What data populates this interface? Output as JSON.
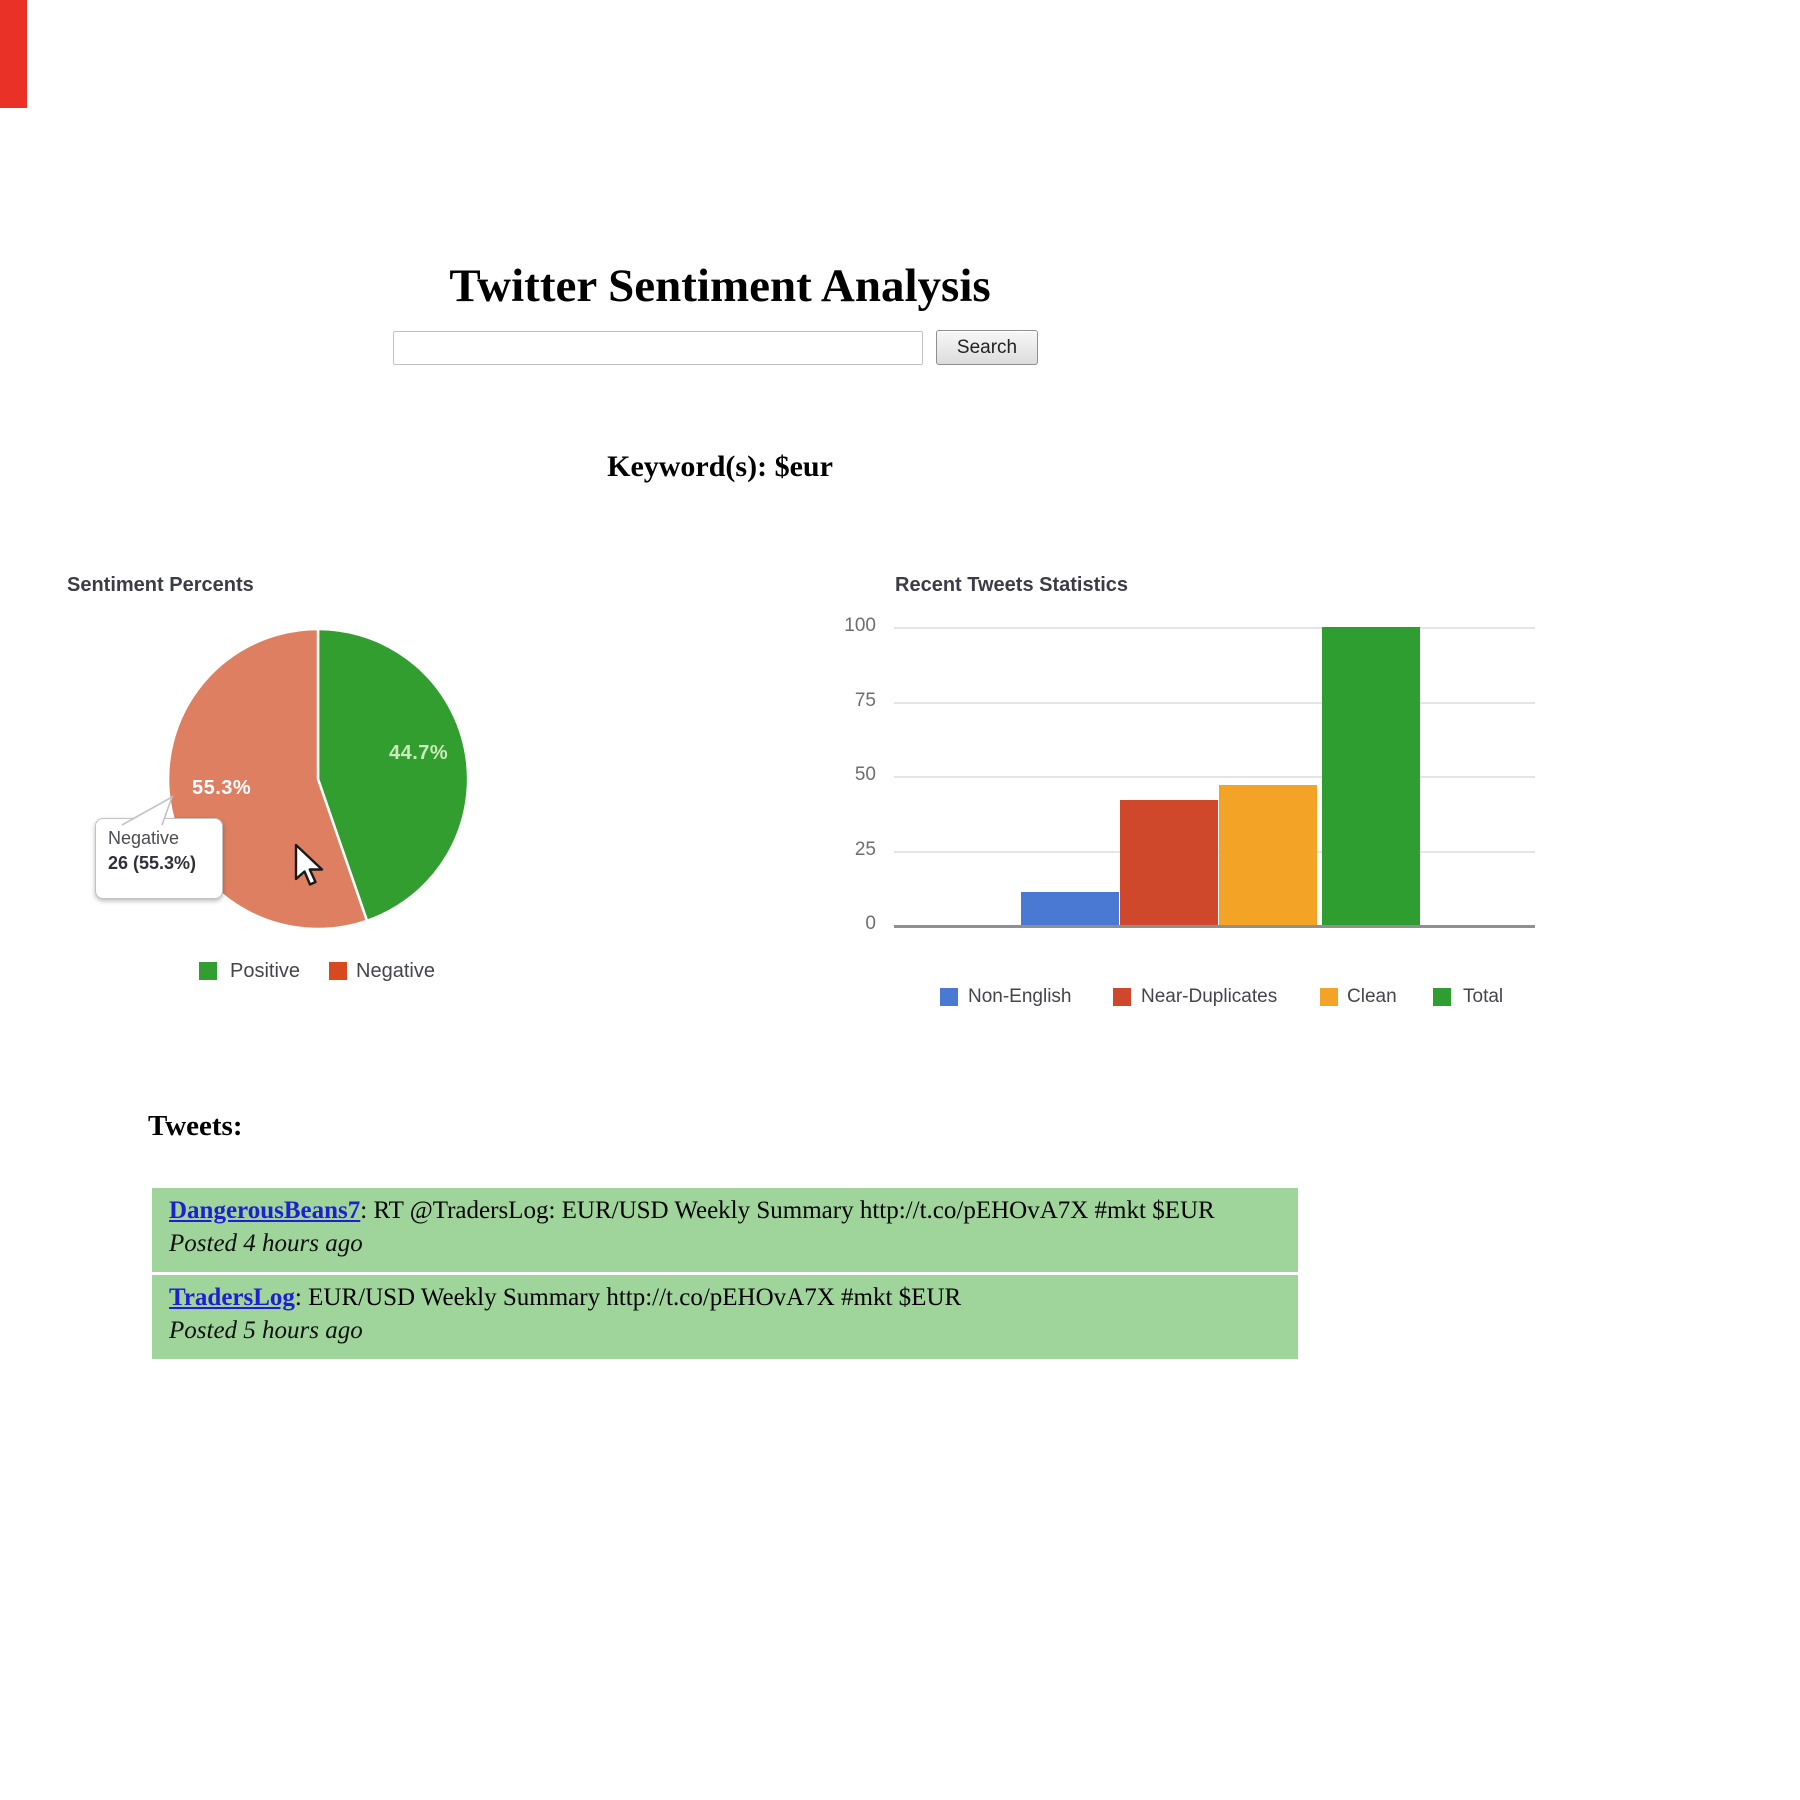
{
  "page": {
    "title": "Twitter Sentiment Analysis"
  },
  "search": {
    "input_value": "",
    "button_label": "Search"
  },
  "keyword_line": "Keyword(s): $eur",
  "chart_data": [
    {
      "type": "pie",
      "title": "Sentiment Percents",
      "labels": [
        "Positive",
        "Negative"
      ],
      "values": [
        44.7,
        55.3
      ],
      "slice_labels": [
        "44.7%",
        "55.3%"
      ],
      "slice_label_colors": [
        "#cdeabc",
        "#ffffff"
      ],
      "colors": [
        "#319e2f",
        "#dd7f60"
      ],
      "legend_colors": [
        "#319e2f",
        "#d8491f"
      ],
      "legend_position": "bottom",
      "tooltip": {
        "label": "Negative",
        "value_text": "26 (55.3%)"
      }
    },
    {
      "type": "bar",
      "title": "Recent Tweets Statistics",
      "categories": [
        "Non-English",
        "Near-Duplicates",
        "Clean",
        "Total"
      ],
      "values": [
        11,
        42,
        47,
        100
      ],
      "colors": [
        "#4a79d4",
        "#d0482b",
        "#f3a427",
        "#2f9e30"
      ],
      "ylim": [
        0,
        100
      ],
      "yticks": [
        0,
        25,
        50,
        75,
        100
      ],
      "grid": true,
      "legend_position": "bottom"
    }
  ],
  "tweets": {
    "heading": "Tweets:",
    "items": [
      {
        "username": "DangerousBeans7",
        "text": ": RT @TradersLog: EUR/USD Weekly Summary http://t.co/pEHOvA7X #mkt $EUR",
        "posted": "Posted 4 hours ago"
      },
      {
        "username": "TradersLog",
        "text": ": EUR/USD Weekly Summary http://t.co/pEHOvA7X #mkt $EUR",
        "posted": "Posted 5 hours ago"
      }
    ]
  }
}
